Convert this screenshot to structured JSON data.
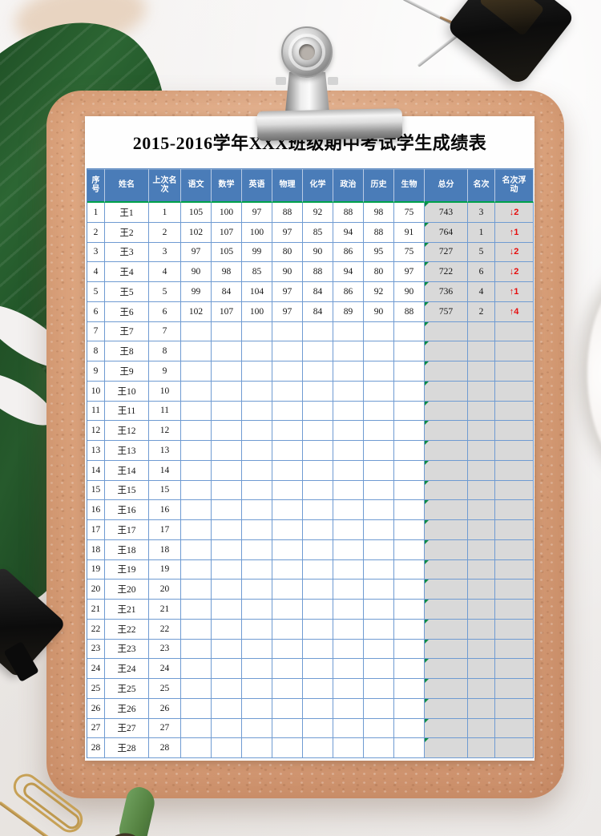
{
  "paper": {
    "title": "2015-2016学年XXX班级期中考试学生成绩表"
  },
  "colors": {
    "header_bg": "#4a7cb8",
    "grid_line": "#6f9bd2",
    "header_accent_green": "#00a14b",
    "comment_triangle_green": "#0c8b45",
    "summary_cell_gray": "#d9d9d9",
    "rank_move_red": "#e60d0d",
    "clipboard_cork": "#d89f79"
  },
  "icons": {
    "rank-up-icon": "↑",
    "rank-down-icon": "↓"
  },
  "decorations": [
    "monstera-leaf",
    "leaf-stem",
    "metal-spring-clip",
    "binder-clip-black-top-right",
    "binder-clip-black-bottom-left",
    "gold-paperclip",
    "white-dish-edge",
    "blurred-beige-object"
  ],
  "table": {
    "columns": [
      "序号",
      "姓名",
      "上次名次",
      "语文",
      "数学",
      "英语",
      "物理",
      "化学",
      "政治",
      "历史",
      "生物",
      "总分",
      "名次",
      "名次浮动"
    ],
    "rows": [
      [
        "1",
        "王1",
        "1",
        "105",
        "100",
        "97",
        "88",
        "92",
        "88",
        "98",
        "75",
        "743",
        "3",
        "↓2"
      ],
      [
        "2",
        "王2",
        "2",
        "102",
        "107",
        "100",
        "97",
        "85",
        "94",
        "88",
        "91",
        "764",
        "1",
        "↑1"
      ],
      [
        "3",
        "王3",
        "3",
        "97",
        "105",
        "99",
        "80",
        "90",
        "86",
        "95",
        "75",
        "727",
        "5",
        "↓2"
      ],
      [
        "4",
        "王4",
        "4",
        "90",
        "98",
        "85",
        "90",
        "88",
        "94",
        "80",
        "97",
        "722",
        "6",
        "↓2"
      ],
      [
        "5",
        "王5",
        "5",
        "99",
        "84",
        "104",
        "97",
        "84",
        "86",
        "92",
        "90",
        "736",
        "4",
        "↑1"
      ],
      [
        "6",
        "王6",
        "6",
        "102",
        "107",
        "100",
        "97",
        "84",
        "89",
        "90",
        "88",
        "757",
        "2",
        "↑4"
      ],
      [
        "7",
        "王7",
        "7",
        "",
        "",
        "",
        "",
        "",
        "",
        "",
        "",
        "",
        "",
        ""
      ],
      [
        "8",
        "王8",
        "8",
        "",
        "",
        "",
        "",
        "",
        "",
        "",
        "",
        "",
        "",
        ""
      ],
      [
        "9",
        "王9",
        "9",
        "",
        "",
        "",
        "",
        "",
        "",
        "",
        "",
        "",
        "",
        ""
      ],
      [
        "10",
        "王10",
        "10",
        "",
        "",
        "",
        "",
        "",
        "",
        "",
        "",
        "",
        "",
        ""
      ],
      [
        "11",
        "王11",
        "11",
        "",
        "",
        "",
        "",
        "",
        "",
        "",
        "",
        "",
        "",
        ""
      ],
      [
        "12",
        "王12",
        "12",
        "",
        "",
        "",
        "",
        "",
        "",
        "",
        "",
        "",
        "",
        ""
      ],
      [
        "13",
        "王13",
        "13",
        "",
        "",
        "",
        "",
        "",
        "",
        "",
        "",
        "",
        "",
        ""
      ],
      [
        "14",
        "王14",
        "14",
        "",
        "",
        "",
        "",
        "",
        "",
        "",
        "",
        "",
        "",
        ""
      ],
      [
        "15",
        "王15",
        "15",
        "",
        "",
        "",
        "",
        "",
        "",
        "",
        "",
        "",
        "",
        ""
      ],
      [
        "16",
        "王16",
        "16",
        "",
        "",
        "",
        "",
        "",
        "",
        "",
        "",
        "",
        "",
        ""
      ],
      [
        "17",
        "王17",
        "17",
        "",
        "",
        "",
        "",
        "",
        "",
        "",
        "",
        "",
        "",
        ""
      ],
      [
        "18",
        "王18",
        "18",
        "",
        "",
        "",
        "",
        "",
        "",
        "",
        "",
        "",
        "",
        ""
      ],
      [
        "19",
        "王19",
        "19",
        "",
        "",
        "",
        "",
        "",
        "",
        "",
        "",
        "",
        "",
        ""
      ],
      [
        "20",
        "王20",
        "20",
        "",
        "",
        "",
        "",
        "",
        "",
        "",
        "",
        "",
        "",
        ""
      ],
      [
        "21",
        "王21",
        "21",
        "",
        "",
        "",
        "",
        "",
        "",
        "",
        "",
        "",
        "",
        ""
      ],
      [
        "22",
        "王22",
        "22",
        "",
        "",
        "",
        "",
        "",
        "",
        "",
        "",
        "",
        "",
        ""
      ],
      [
        "23",
        "王23",
        "23",
        "",
        "",
        "",
        "",
        "",
        "",
        "",
        "",
        "",
        "",
        ""
      ],
      [
        "24",
        "王24",
        "24",
        "",
        "",
        "",
        "",
        "",
        "",
        "",
        "",
        "",
        "",
        ""
      ],
      [
        "25",
        "王25",
        "25",
        "",
        "",
        "",
        "",
        "",
        "",
        "",
        "",
        "",
        "",
        ""
      ],
      [
        "26",
        "王26",
        "26",
        "",
        "",
        "",
        "",
        "",
        "",
        "",
        "",
        "",
        "",
        ""
      ],
      [
        "27",
        "王27",
        "27",
        "",
        "",
        "",
        "",
        "",
        "",
        "",
        "",
        "",
        "",
        ""
      ],
      [
        "28",
        "王28",
        "28",
        "",
        "",
        "",
        "",
        "",
        "",
        "",
        "",
        "",
        "",
        ""
      ]
    ]
  }
}
